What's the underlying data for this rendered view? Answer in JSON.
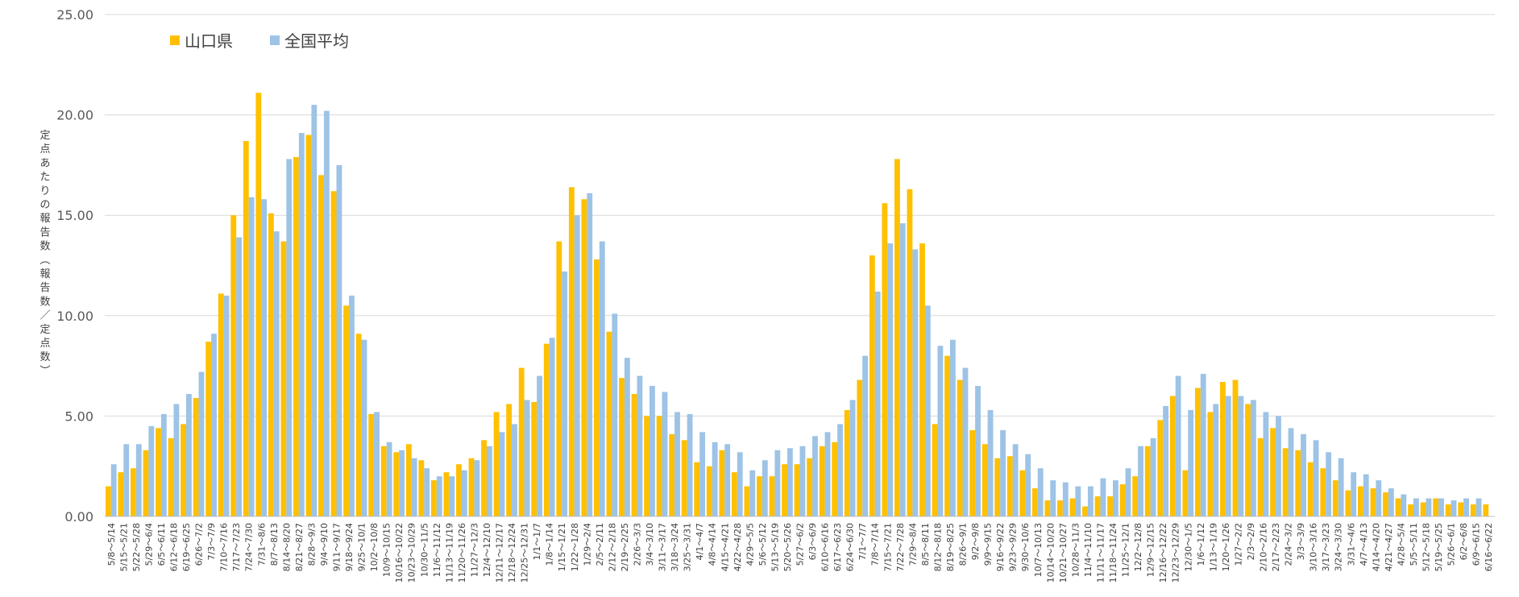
{
  "chart_data": {
    "type": "bar",
    "ylabel": "定点あたりの報告数（報告数／定点数）",
    "ylim": [
      0,
      25
    ],
    "yticks": [
      "0.00",
      "5.00",
      "10.00",
      "15.00",
      "20.00",
      "25.00"
    ],
    "grid": true,
    "legend_position": "top-left",
    "colors": {
      "yamaguchi": "#FFC000",
      "national": "#9DC3E6",
      "grid": "#D9D9D9"
    },
    "categories": [
      "5/8～5/14",
      "5/15～5/21",
      "5/22～5/28",
      "5/29～6/4",
      "6/5～6/11",
      "6/12～6/18",
      "6/19～6/25",
      "6/26～7/2",
      "7/3～7/9",
      "7/10～7/16",
      "7/17～7/23",
      "7/24～7/30",
      "7/31～8/6",
      "8/7～8/13",
      "8/14～8/20",
      "8/21～8/27",
      "8/28～9/3",
      "9/4～9/10",
      "9/11～9/17",
      "9/18～9/24",
      "9/25～10/1",
      "10/2～10/8",
      "10/9～10/15",
      "10/16～10/22",
      "10/23～10/29",
      "10/30～11/5",
      "11/6～11/12",
      "11/13～11/19",
      "11/20～11/26",
      "11/27～12/3",
      "12/4～12/10",
      "12/11～12/17",
      "12/18～12/24",
      "12/25～12/31",
      "1/1～1/7",
      "1/8～1/14",
      "1/15～1/21",
      "1/22～1/28",
      "1/29～2/4",
      "2/5～2/11",
      "2/12～2/18",
      "2/19～2/25",
      "2/26～3/3",
      "3/4～3/10",
      "3/11～3/17",
      "3/18～3/24",
      "3/25～3/31",
      "4/1～4/7",
      "4/8～4/14",
      "4/15～4/21",
      "4/22～4/28",
      "4/29～5/5",
      "5/6～5/12",
      "5/13～5/19",
      "5/20～5/26",
      "5/27～6/2",
      "6/3～6/9",
      "6/10～6/16",
      "6/17～6/23",
      "6/24～6/30",
      "7/1～7/7",
      "7/8～7/14",
      "7/15～7/21",
      "7/22～7/28",
      "7/29～8/4",
      "8/5～8/11",
      "8/12～8/18",
      "8/19～8/25",
      "8/26～9/1",
      "9/2～9/8",
      "9/9～9/15",
      "9/16～9/22",
      "9/23～9/29",
      "9/30～10/6",
      "10/7～10/13",
      "10/14～10/20",
      "10/21～10/27",
      "10/28～11/3",
      "11/4～11/10",
      "11/11～11/17",
      "11/18～11/24",
      "11/25～12/1",
      "12/2～12/8",
      "12/9～12/15",
      "12/16～12/22",
      "12/23～12/29",
      "12/30～1/5",
      "1/6～1/12",
      "1/13～1/19",
      "1/20～1/26",
      "1/27～2/2",
      "2/3～2/9",
      "2/10～2/16",
      "2/17～2/23",
      "2/24～3/2",
      "3/3～3/9",
      "3/10～3/16",
      "3/17～3/23",
      "3/24～3/30",
      "3/31～4/6",
      "4/7～4/13",
      "4/14～4/20",
      "4/21～4/27",
      "4/28～5/4",
      "5/5～5/11",
      "5/12～5/18",
      "5/19～5/25",
      "5/26～6/1",
      "6/2～6/8",
      "6/9～6/15",
      "6/16～6/22"
    ],
    "series": [
      {
        "name": "山口県",
        "values": [
          1.5,
          2.2,
          2.4,
          3.3,
          4.4,
          3.9,
          4.6,
          5.9,
          8.7,
          11.1,
          15.0,
          18.7,
          21.1,
          15.1,
          13.7,
          17.9,
          19.0,
          17.0,
          16.2,
          10.5,
          9.1,
          5.1,
          3.5,
          3.2,
          3.6,
          2.8,
          1.8,
          2.2,
          2.6,
          2.9,
          3.8,
          5.2,
          5.6,
          7.4,
          5.7,
          8.6,
          13.7,
          16.4,
          15.8,
          12.8,
          9.2,
          6.9,
          6.1,
          5.0,
          5.0,
          4.1,
          3.8,
          2.7,
          2.5,
          3.3,
          2.2,
          1.5,
          2.0,
          2.0,
          2.6,
          2.6,
          2.9,
          3.5,
          3.7,
          5.3,
          6.8,
          13.0,
          15.6,
          17.8,
          16.3,
          13.6,
          4.6,
          8.0,
          6.8,
          4.3,
          3.6,
          2.9,
          3.0,
          2.3,
          1.4,
          0.8,
          0.8,
          0.9,
          0.5,
          1.0,
          1.0,
          1.6,
          2.0,
          3.5,
          4.8,
          6.0,
          2.3,
          6.4,
          5.2,
          6.7,
          6.8,
          5.6,
          3.9,
          4.4,
          3.4,
          3.3,
          2.7,
          2.4,
          1.8,
          1.3,
          1.5,
          1.4,
          1.2,
          0.9,
          0.6,
          0.7,
          0.9,
          0.6,
          0.7,
          0.6,
          0.6
        ]
      },
      {
        "name": "全国平均",
        "values": [
          2.6,
          3.6,
          3.6,
          4.5,
          5.1,
          5.6,
          6.1,
          7.2,
          9.1,
          11.0,
          13.9,
          15.9,
          15.8,
          14.2,
          17.8,
          19.1,
          20.5,
          20.2,
          17.5,
          11.0,
          8.8,
          5.2,
          3.7,
          3.3,
          2.9,
          2.4,
          2.0,
          2.0,
          2.3,
          2.8,
          3.5,
          4.2,
          4.6,
          5.8,
          7.0,
          8.9,
          12.2,
          15.0,
          16.1,
          13.7,
          10.1,
          7.9,
          7.0,
          6.5,
          6.2,
          5.2,
          5.1,
          4.2,
          3.7,
          3.6,
          3.2,
          2.3,
          2.8,
          3.3,
          3.4,
          3.5,
          4.0,
          4.2,
          4.6,
          5.8,
          8.0,
          11.2,
          13.6,
          14.6,
          13.3,
          10.5,
          8.5,
          8.8,
          7.4,
          6.5,
          5.3,
          4.3,
          3.6,
          3.1,
          2.4,
          1.8,
          1.7,
          1.5,
          1.5,
          1.9,
          1.8,
          2.4,
          3.5,
          3.9,
          5.5,
          7.0,
          5.3,
          7.1,
          5.6,
          6.0,
          6.0,
          5.8,
          5.2,
          5.0,
          4.4,
          4.1,
          3.8,
          3.2,
          2.9,
          2.2,
          2.1,
          1.8,
          1.4,
          1.1,
          0.9,
          0.9,
          0.9,
          0.8,
          0.9,
          0.9,
          0.0
        ]
      }
    ]
  }
}
